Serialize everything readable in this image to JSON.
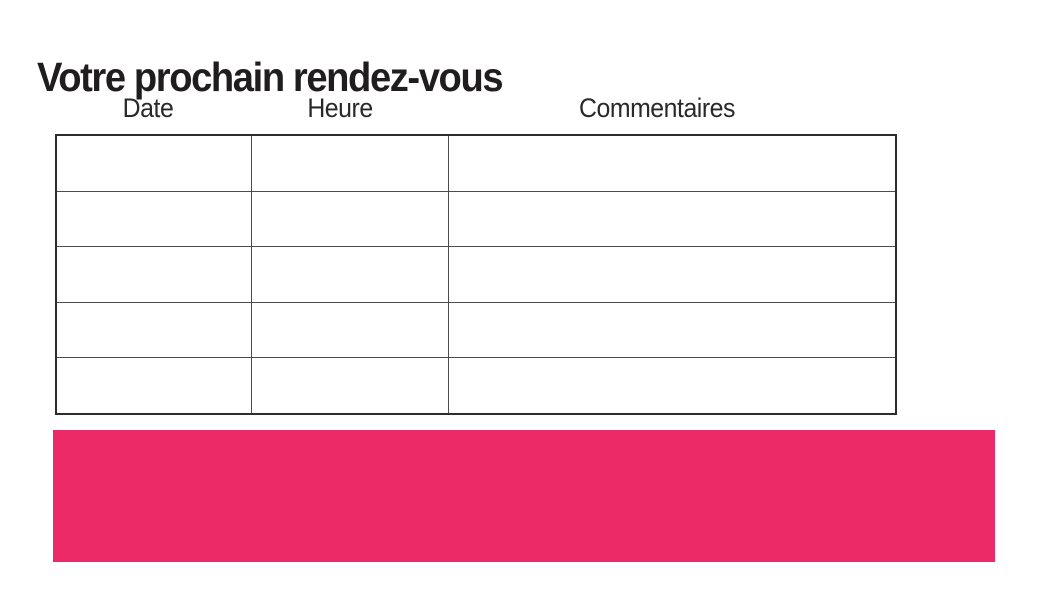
{
  "page": {
    "title": "Votre prochain rendez-vous",
    "background_color": "#ffffff",
    "text_color": "#1f1d1e"
  },
  "table": {
    "headers": [
      "Date",
      "Heure",
      "Commentaires"
    ],
    "rows": [
      [
        "",
        "",
        ""
      ],
      [
        "",
        "",
        ""
      ],
      [
        "",
        "",
        ""
      ],
      [
        "",
        "",
        ""
      ],
      [
        "",
        "",
        ""
      ]
    ],
    "border_color": "#2e2c2d"
  },
  "banner": {
    "color": "#ed2a68",
    "text": ""
  }
}
